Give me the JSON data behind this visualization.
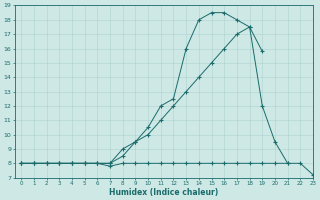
{
  "xlabel": "Humidex (Indice chaleur)",
  "background_color": "#cde8e5",
  "line_color": "#1a6b6b",
  "grid_color": "#afd4d0",
  "xlim": [
    -0.5,
    23
  ],
  "ylim": [
    7,
    19
  ],
  "xticks": [
    0,
    1,
    2,
    3,
    4,
    5,
    6,
    7,
    8,
    9,
    10,
    11,
    12,
    13,
    14,
    15,
    16,
    17,
    18,
    19,
    20,
    21,
    22,
    23
  ],
  "yticks": [
    7,
    8,
    9,
    10,
    11,
    12,
    13,
    14,
    15,
    16,
    17,
    18,
    19
  ],
  "line1_x": [
    0,
    1,
    2,
    3,
    4,
    5,
    6,
    7,
    8,
    9,
    10,
    11,
    12,
    13,
    14,
    15,
    16,
    17,
    18,
    19,
    20,
    21,
    22,
    23
  ],
  "line1_y": [
    8,
    8,
    8,
    8,
    8,
    8,
    8,
    7.8,
    8,
    8,
    8,
    8,
    8,
    8,
    8,
    8,
    8,
    8,
    8,
    8,
    8,
    8,
    8,
    7.2
  ],
  "line2_x": [
    0,
    1,
    2,
    3,
    4,
    5,
    6,
    7,
    8,
    9,
    10,
    11,
    12,
    13,
    14,
    15,
    16,
    17,
    18,
    19,
    20,
    21
  ],
  "line2_y": [
    8,
    8,
    8,
    8,
    8,
    8,
    8,
    8,
    9,
    9.5,
    10,
    11,
    12,
    13,
    14,
    15,
    16,
    17,
    17.5,
    12,
    9.5,
    8
  ],
  "line3_x": [
    0,
    1,
    2,
    3,
    4,
    5,
    6,
    7,
    8,
    9,
    10,
    11,
    12,
    13,
    14,
    15,
    16,
    17,
    18,
    19
  ],
  "line3_y": [
    8,
    8,
    8,
    8,
    8,
    8,
    8,
    8,
    8.5,
    9.5,
    10.5,
    12,
    12.5,
    16,
    18,
    18.5,
    18.5,
    18,
    17.5,
    15.8
  ]
}
